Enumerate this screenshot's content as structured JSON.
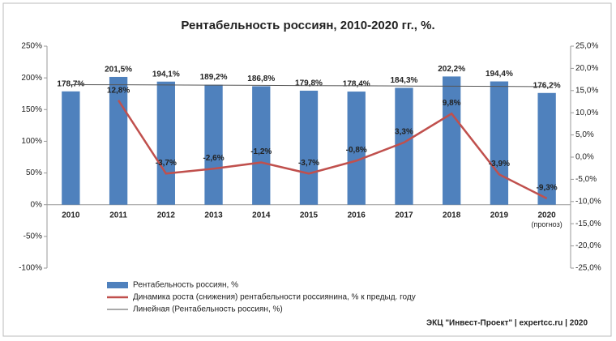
{
  "chart_data": {
    "type": "bar-line",
    "title": "Рентабельность россиян, 2010-2020 гг., %.",
    "categories": [
      "2010",
      "2011",
      "2012",
      "2013",
      "2014",
      "2015",
      "2016",
      "2017",
      "2018",
      "2019",
      "2020"
    ],
    "forecast_note": "(прогноз)",
    "series": [
      {
        "name": "Рентабельность россиян, %",
        "kind": "bar",
        "color": "#4f81bd",
        "values": [
          178.7,
          201.5,
          194.1,
          189.2,
          186.8,
          179.8,
          178.4,
          184.3,
          202.2,
          194.4,
          176.2
        ],
        "value_labels": [
          "178,7%",
          "201,5%",
          "194,1%",
          "189,2%",
          "186,8%",
          "179,8%",
          "178,4%",
          "184,3%",
          "202,2%",
          "194,4%",
          "176,2%"
        ]
      },
      {
        "name": "Динамика роста (снижения) рентабельности россиянина, % к предыд. году",
        "kind": "line",
        "axis": "y2",
        "color": "#c0504d",
        "values": [
          null,
          12.8,
          -3.7,
          -2.6,
          -1.2,
          -3.7,
          -0.8,
          3.3,
          9.8,
          -3.9,
          -9.3
        ],
        "value_labels": [
          null,
          "12,8%",
          "-3,7%",
          "-2,6%",
          "-1,2%",
          "-3,7%",
          "-0,8%",
          "3,3%",
          "9,8%",
          "-3,9%",
          "-9,3%"
        ]
      },
      {
        "name": "Линейная (Рентабельность россиян, %)",
        "kind": "trend",
        "color": "#555555",
        "values": [
          189.4,
          189.1,
          188.8,
          188.5,
          188.2,
          187.8,
          187.5,
          187.2,
          186.9,
          186.6,
          186.2
        ]
      }
    ],
    "ylim": [
      -100,
      250
    ],
    "yticks": [
      {
        "value": -100,
        "label": "-100%"
      },
      {
        "value": -50,
        "label": "-50%"
      },
      {
        "value": 0,
        "label": "0%"
      },
      {
        "value": 50,
        "label": "50%"
      },
      {
        "value": 100,
        "label": "100%"
      },
      {
        "value": 150,
        "label": "150%"
      },
      {
        "value": 200,
        "label": "200%"
      },
      {
        "value": 250,
        "label": "250%"
      }
    ],
    "y2lim": [
      -25,
      25
    ],
    "y2ticks": [
      {
        "value": -25,
        "label": "-25,0%"
      },
      {
        "value": -20,
        "label": "-20,0%"
      },
      {
        "value": -15,
        "label": "-15,0%"
      },
      {
        "value": -10,
        "label": "-10,0%"
      },
      {
        "value": -5,
        "label": "-5,0%"
      },
      {
        "value": 0,
        "label": "0,0%"
      },
      {
        "value": 5,
        "label": "5,0%"
      },
      {
        "value": 10,
        "label": "10,0%"
      },
      {
        "value": 15,
        "label": "15,0%"
      },
      {
        "value": 20,
        "label": "20,0%"
      },
      {
        "value": 25,
        "label": "25,0%"
      }
    ],
    "source": "ЭКЦ \"Инвест-Проект\" | expertcc.ru | 2020"
  }
}
